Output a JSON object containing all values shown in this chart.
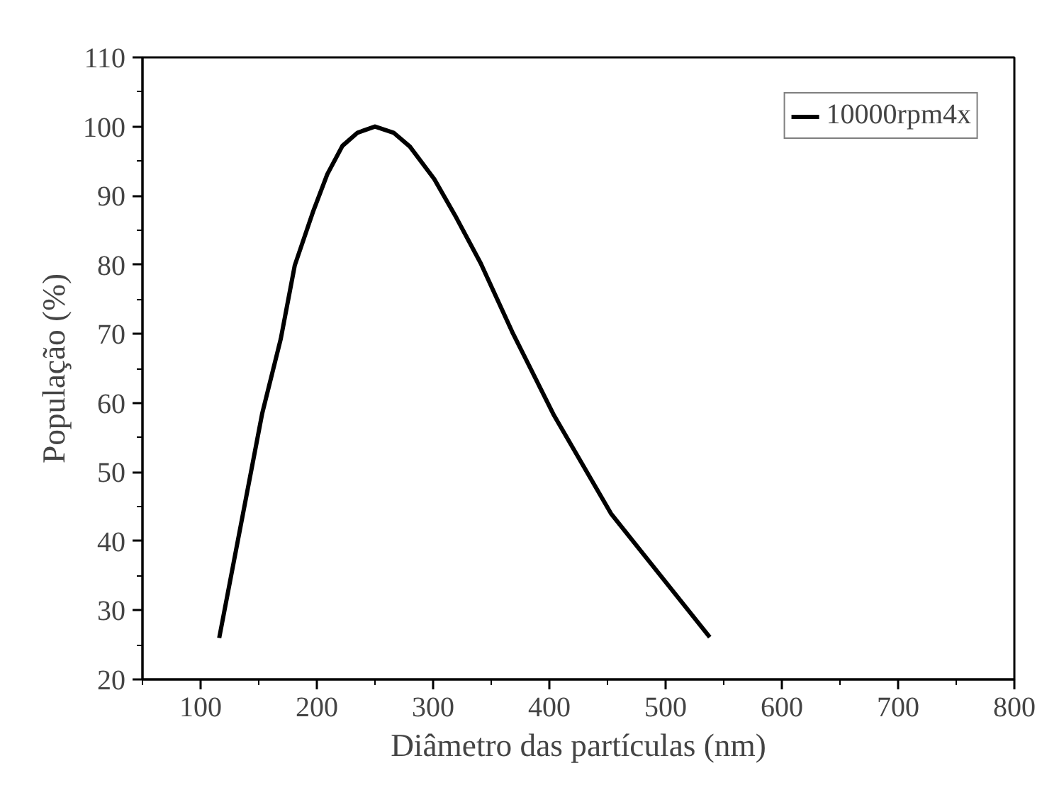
{
  "chart_data": {
    "type": "line",
    "xlabel": "Diâmetro das partículas (nm)",
    "ylabel": "População (%)",
    "xlim": [
      50,
      800
    ],
    "xticks": [
      100,
      200,
      300,
      400,
      500,
      600,
      700,
      800
    ],
    "ylim": [
      20,
      110
    ],
    "yticks": [
      20,
      30,
      40,
      50,
      60,
      70,
      80,
      90,
      100,
      110
    ],
    "grid": false,
    "legend": "top right",
    "marker": "none",
    "line_style": "solid",
    "series": [
      {
        "name": "10000rpm4x",
        "color": "#000000",
        "x": [
          116,
          153,
          169,
          181,
          197,
          209,
          222,
          235,
          250,
          266,
          280,
          301,
          320,
          341,
          368,
          404,
          453,
          538
        ],
        "values": [
          26.0,
          58.5,
          69.3,
          79.9,
          87.8,
          93.1,
          97.2,
          99.1,
          100,
          99.1,
          97.1,
          92.4,
          86.8,
          80.2,
          70.3,
          58.2,
          44.0,
          26.1
        ]
      }
    ]
  }
}
